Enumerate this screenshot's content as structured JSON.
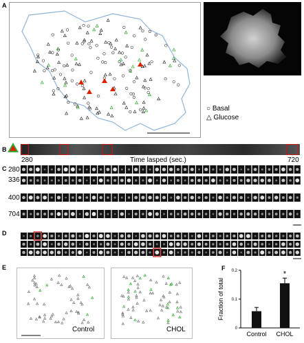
{
  "panels": {
    "a": {
      "letter": "A",
      "legend": {
        "basal_symbol": "○",
        "basal": "Basal",
        "glucose_symbol": "△",
        "glucose": "Glucose"
      }
    },
    "b": {
      "letter": "B",
      "time_start": "280",
      "time_end": "720",
      "axis_label": "Time lasped (sec.)"
    },
    "c": {
      "letter": "C",
      "rows": [
        "280",
        "336",
        "400",
        "704"
      ]
    },
    "d": {
      "letter": "D"
    },
    "e": {
      "letter": "E",
      "left_label": "Control",
      "right_label": "CHOL"
    },
    "f": {
      "letter": "F"
    }
  },
  "colors": {
    "outline": "#8fb4d9",
    "green": "#33aa33",
    "red": "#dd2200",
    "bar": "#111111",
    "frame": "#cc1111"
  },
  "chart_data": {
    "type": "bar",
    "categories": [
      "Control",
      "CHOL"
    ],
    "values": [
      0.058,
      0.155
    ],
    "errors": [
      0.013,
      0.018
    ],
    "significance": [
      "",
      "*"
    ],
    "ylabel": "Fraction of total",
    "ylim": [
      0,
      0.2
    ],
    "yticks": [
      "0",
      "0.1",
      "0.2"
    ]
  }
}
